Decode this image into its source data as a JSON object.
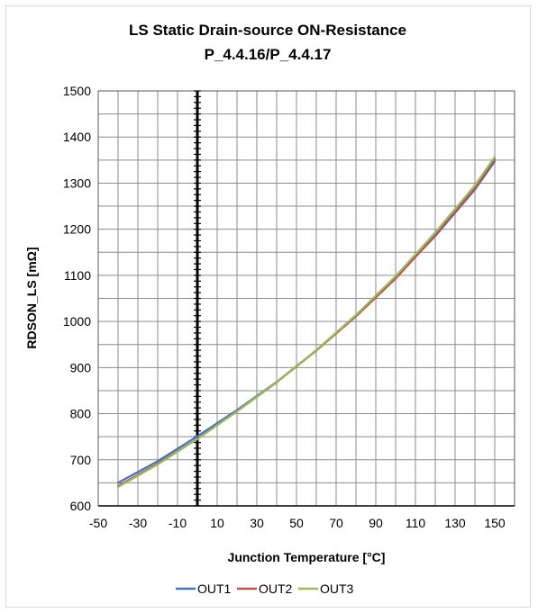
{
  "chart_data": {
    "type": "line",
    "title": "LS Static Drain-source ON-Resistance",
    "subtitle": "P_4.4.16/P_4.4.17",
    "xlabel": "Junction Temperature [°C]",
    "ylabel": "RDSON_LS [mΩ]",
    "xlim": [
      -50,
      160
    ],
    "ylim": [
      600,
      1500
    ],
    "x_ticks": [
      -50,
      -30,
      -10,
      10,
      30,
      50,
      70,
      90,
      110,
      130,
      150
    ],
    "y_ticks": [
      600,
      700,
      800,
      900,
      1000,
      1100,
      1200,
      1300,
      1400,
      1500
    ],
    "grid": true,
    "legend_position": "bottom",
    "x": [
      -40,
      -20,
      0,
      20,
      40,
      60,
      80,
      100,
      120,
      140,
      150
    ],
    "series": [
      {
        "name": "OUT1",
        "color": "#4472C4",
        "values": [
          650,
          697,
          751,
          808,
          869,
          937,
          1013,
          1095,
          1185,
          1286,
          1347
        ]
      },
      {
        "name": "OUT2",
        "color": "#C0504D",
        "values": [
          643,
          692,
          745,
          805,
          868,
          937,
          1011,
          1093,
          1187,
          1289,
          1352
        ]
      },
      {
        "name": "OUT3",
        "color": "#9BBB59",
        "values": [
          641,
          690,
          745,
          805,
          869,
          938,
          1014,
          1098,
          1193,
          1295,
          1357
        ]
      }
    ]
  }
}
